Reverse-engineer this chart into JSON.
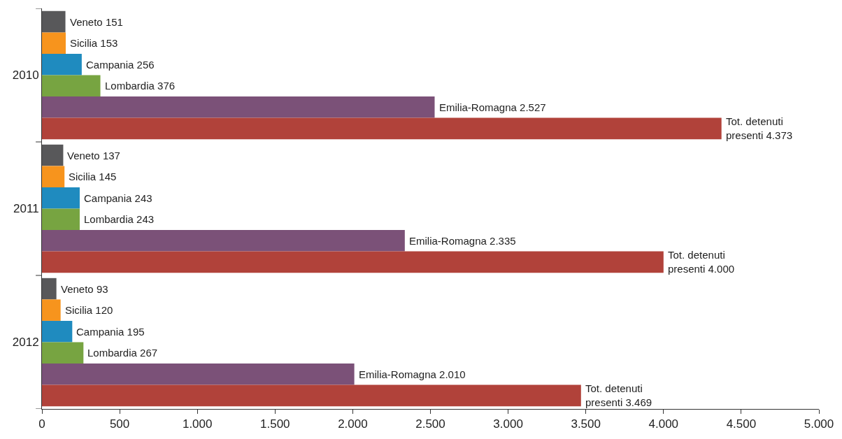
{
  "chart_data": {
    "type": "bar",
    "orientation": "horizontal",
    "categories": [
      "2010",
      "2011",
      "2012"
    ],
    "series": [
      {
        "name": "Veneto",
        "color": "#58585a",
        "values": [
          151,
          137,
          93
        ],
        "value_labels": [
          "151",
          "137",
          "93"
        ]
      },
      {
        "name": "Sicilia",
        "color": "#f7941d",
        "values": [
          153,
          145,
          120
        ],
        "value_labels": [
          "153",
          "145",
          "120"
        ]
      },
      {
        "name": "Campania",
        "color": "#1f8bbf",
        "values": [
          256,
          243,
          195
        ],
        "value_labels": [
          "256",
          "243",
          "195"
        ]
      },
      {
        "name": "Lombardia",
        "color": "#77a441",
        "values": [
          376,
          243,
          267
        ],
        "value_labels": [
          "376",
          "243",
          "267"
        ]
      },
      {
        "name": "Emilia-Romagna",
        "color": "#7b5178",
        "values": [
          2527,
          2335,
          2010
        ],
        "value_labels": [
          "2.527",
          "2.335",
          "2.010"
        ]
      },
      {
        "name": "Tot. detenuti presenti",
        "color": "#b1423a",
        "values": [
          4373,
          4000,
          3469
        ],
        "value_labels": [
          "4.373",
          "4.000",
          "3.469"
        ]
      }
    ],
    "xlim": [
      0,
      5000
    ],
    "xticks": [
      0,
      500,
      {
        "value": 1000,
        "label": "1.000"
      },
      {
        "value": 1500,
        "label": "1.500"
      },
      {
        "value": 2000,
        "label": "2.000"
      },
      {
        "value": 2500,
        "label": "2.500"
      },
      {
        "value": 3000,
        "label": "3.000"
      },
      {
        "value": 3500,
        "label": "3.500"
      },
      {
        "value": 4000,
        "label": "4.000"
      },
      {
        "value": 4500,
        "label": "4.500"
      },
      {
        "value": 5000,
        "label": "5.000"
      }
    ]
  }
}
